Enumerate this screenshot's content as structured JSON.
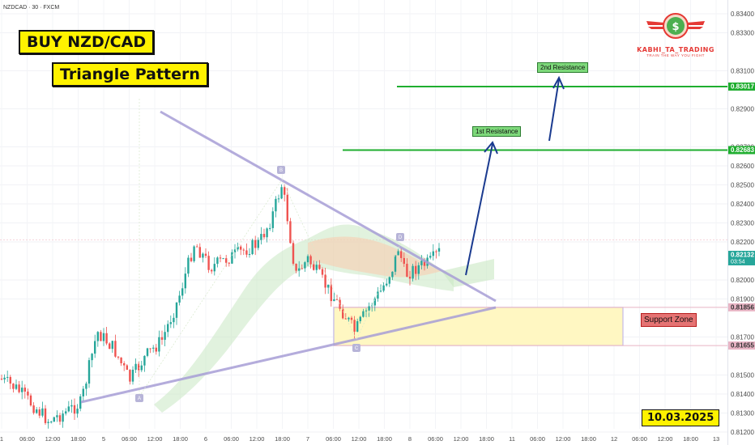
{
  "symbol_info": "NZDCAD · 30 · FXCM",
  "title": "BUY NZD/CAD",
  "subtitle": "Triangle Pattern",
  "date": "10.03.2025",
  "logo": {
    "name": "KABHI_TA_TRADING",
    "tagline": "TRAIN THE WAY YOU FIGHT",
    "icon": "dollar-icon",
    "symbol": "$"
  },
  "labels": {
    "resistance_1": "1st Resistance",
    "resistance_2": "2nd Resistance",
    "support_zone": "Support Zone",
    "point_a": "A",
    "point_b": "B",
    "point_c": "C",
    "point_d": "D"
  },
  "colors": {
    "bull": "#26a69a",
    "bear": "#ef5350",
    "resistance": "#1fae2f",
    "arrow": "#1a3a8f",
    "triangle": "#a79ed6",
    "support_fill": "#fff7c2",
    "support_border": "#b8aee8",
    "title_bg": "#fff200"
  },
  "chart_data": {
    "type": "candlestick",
    "price_ticks": [
      "0.83400",
      "0.83300",
      "0.83100",
      "0.82900",
      "0.82700",
      "0.82600",
      "0.82500",
      "0.82400",
      "0.82300",
      "0.82200",
      "0.82000",
      "0.81900",
      "0.81700",
      "0.81500",
      "0.81400",
      "0.81300",
      "0.81200"
    ],
    "tick_values": [
      0.834,
      0.833,
      0.831,
      0.829,
      0.827,
      0.826,
      0.825,
      0.824,
      0.823,
      0.822,
      0.82,
      0.819,
      0.817,
      0.815,
      0.814,
      0.813,
      0.812
    ],
    "highlighted_prices": [
      {
        "label": "0.83017",
        "value": 0.83017,
        "color": "#1fae2f"
      },
      {
        "label": "0.82683",
        "value": 0.82683,
        "color": "#1fae2f"
      },
      {
        "label": "0.82132",
        "value": 0.82132,
        "color": "#26a69a",
        "sub": "03:54"
      },
      {
        "label": "0.81856",
        "value": 0.81856,
        "color": "#e8b4c4"
      },
      {
        "label": "0.81655",
        "value": 0.81655,
        "color": "#e8b4c4"
      }
    ],
    "time_labels": [
      "1",
      "06:00",
      "12:00",
      "18:00",
      "5",
      "06:00",
      "12:00",
      "18:00",
      "6",
      "06:00",
      "12:00",
      "18:00",
      "7",
      "06:00",
      "12:00",
      "18:00",
      "8",
      "06:00",
      "12:00",
      "18:00",
      "11",
      "06:00",
      "12:00",
      "18:00",
      "12",
      "06:00",
      "12:00",
      "18:00",
      "13"
    ],
    "resistance_levels": [
      0.82683,
      0.83017
    ],
    "support_zone": [
      0.81655,
      0.81856
    ],
    "last_price": 0.82132
  }
}
